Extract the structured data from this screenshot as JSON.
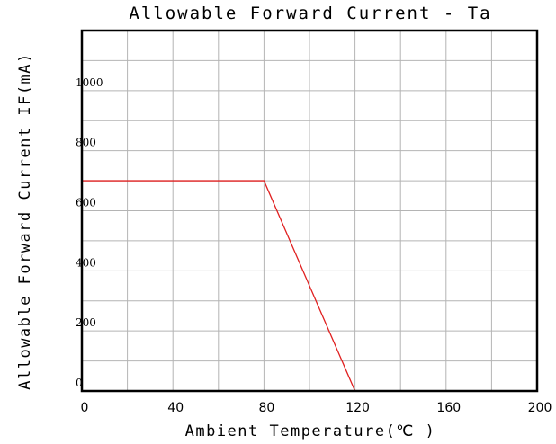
{
  "chart_data": {
    "type": "line",
    "title": "Allowable Forward Current - Ta",
    "xlabel": "Ambient Temperature(℃ )",
    "ylabel": "Allowable Forward Current IF(mA)",
    "xlim": [
      0,
      200
    ],
    "ylim": [
      0,
      1200
    ],
    "x_ticks": [
      0,
      40,
      80,
      120,
      160,
      200
    ],
    "x_tick_labels": [
      "0",
      "40",
      "80",
      "120",
      "160",
      "200"
    ],
    "y_ticks": [
      0,
      200,
      400,
      600,
      800,
      1000
    ],
    "y_tick_labels": [
      "0",
      "200",
      "400",
      "600",
      "800",
      "1000"
    ],
    "x_grid_step": 20,
    "y_grid_step": 100,
    "grid": true,
    "series": [
      {
        "color": "#e02020",
        "x": [
          0,
          80,
          120
        ],
        "y": [
          700,
          700,
          0
        ]
      }
    ]
  }
}
